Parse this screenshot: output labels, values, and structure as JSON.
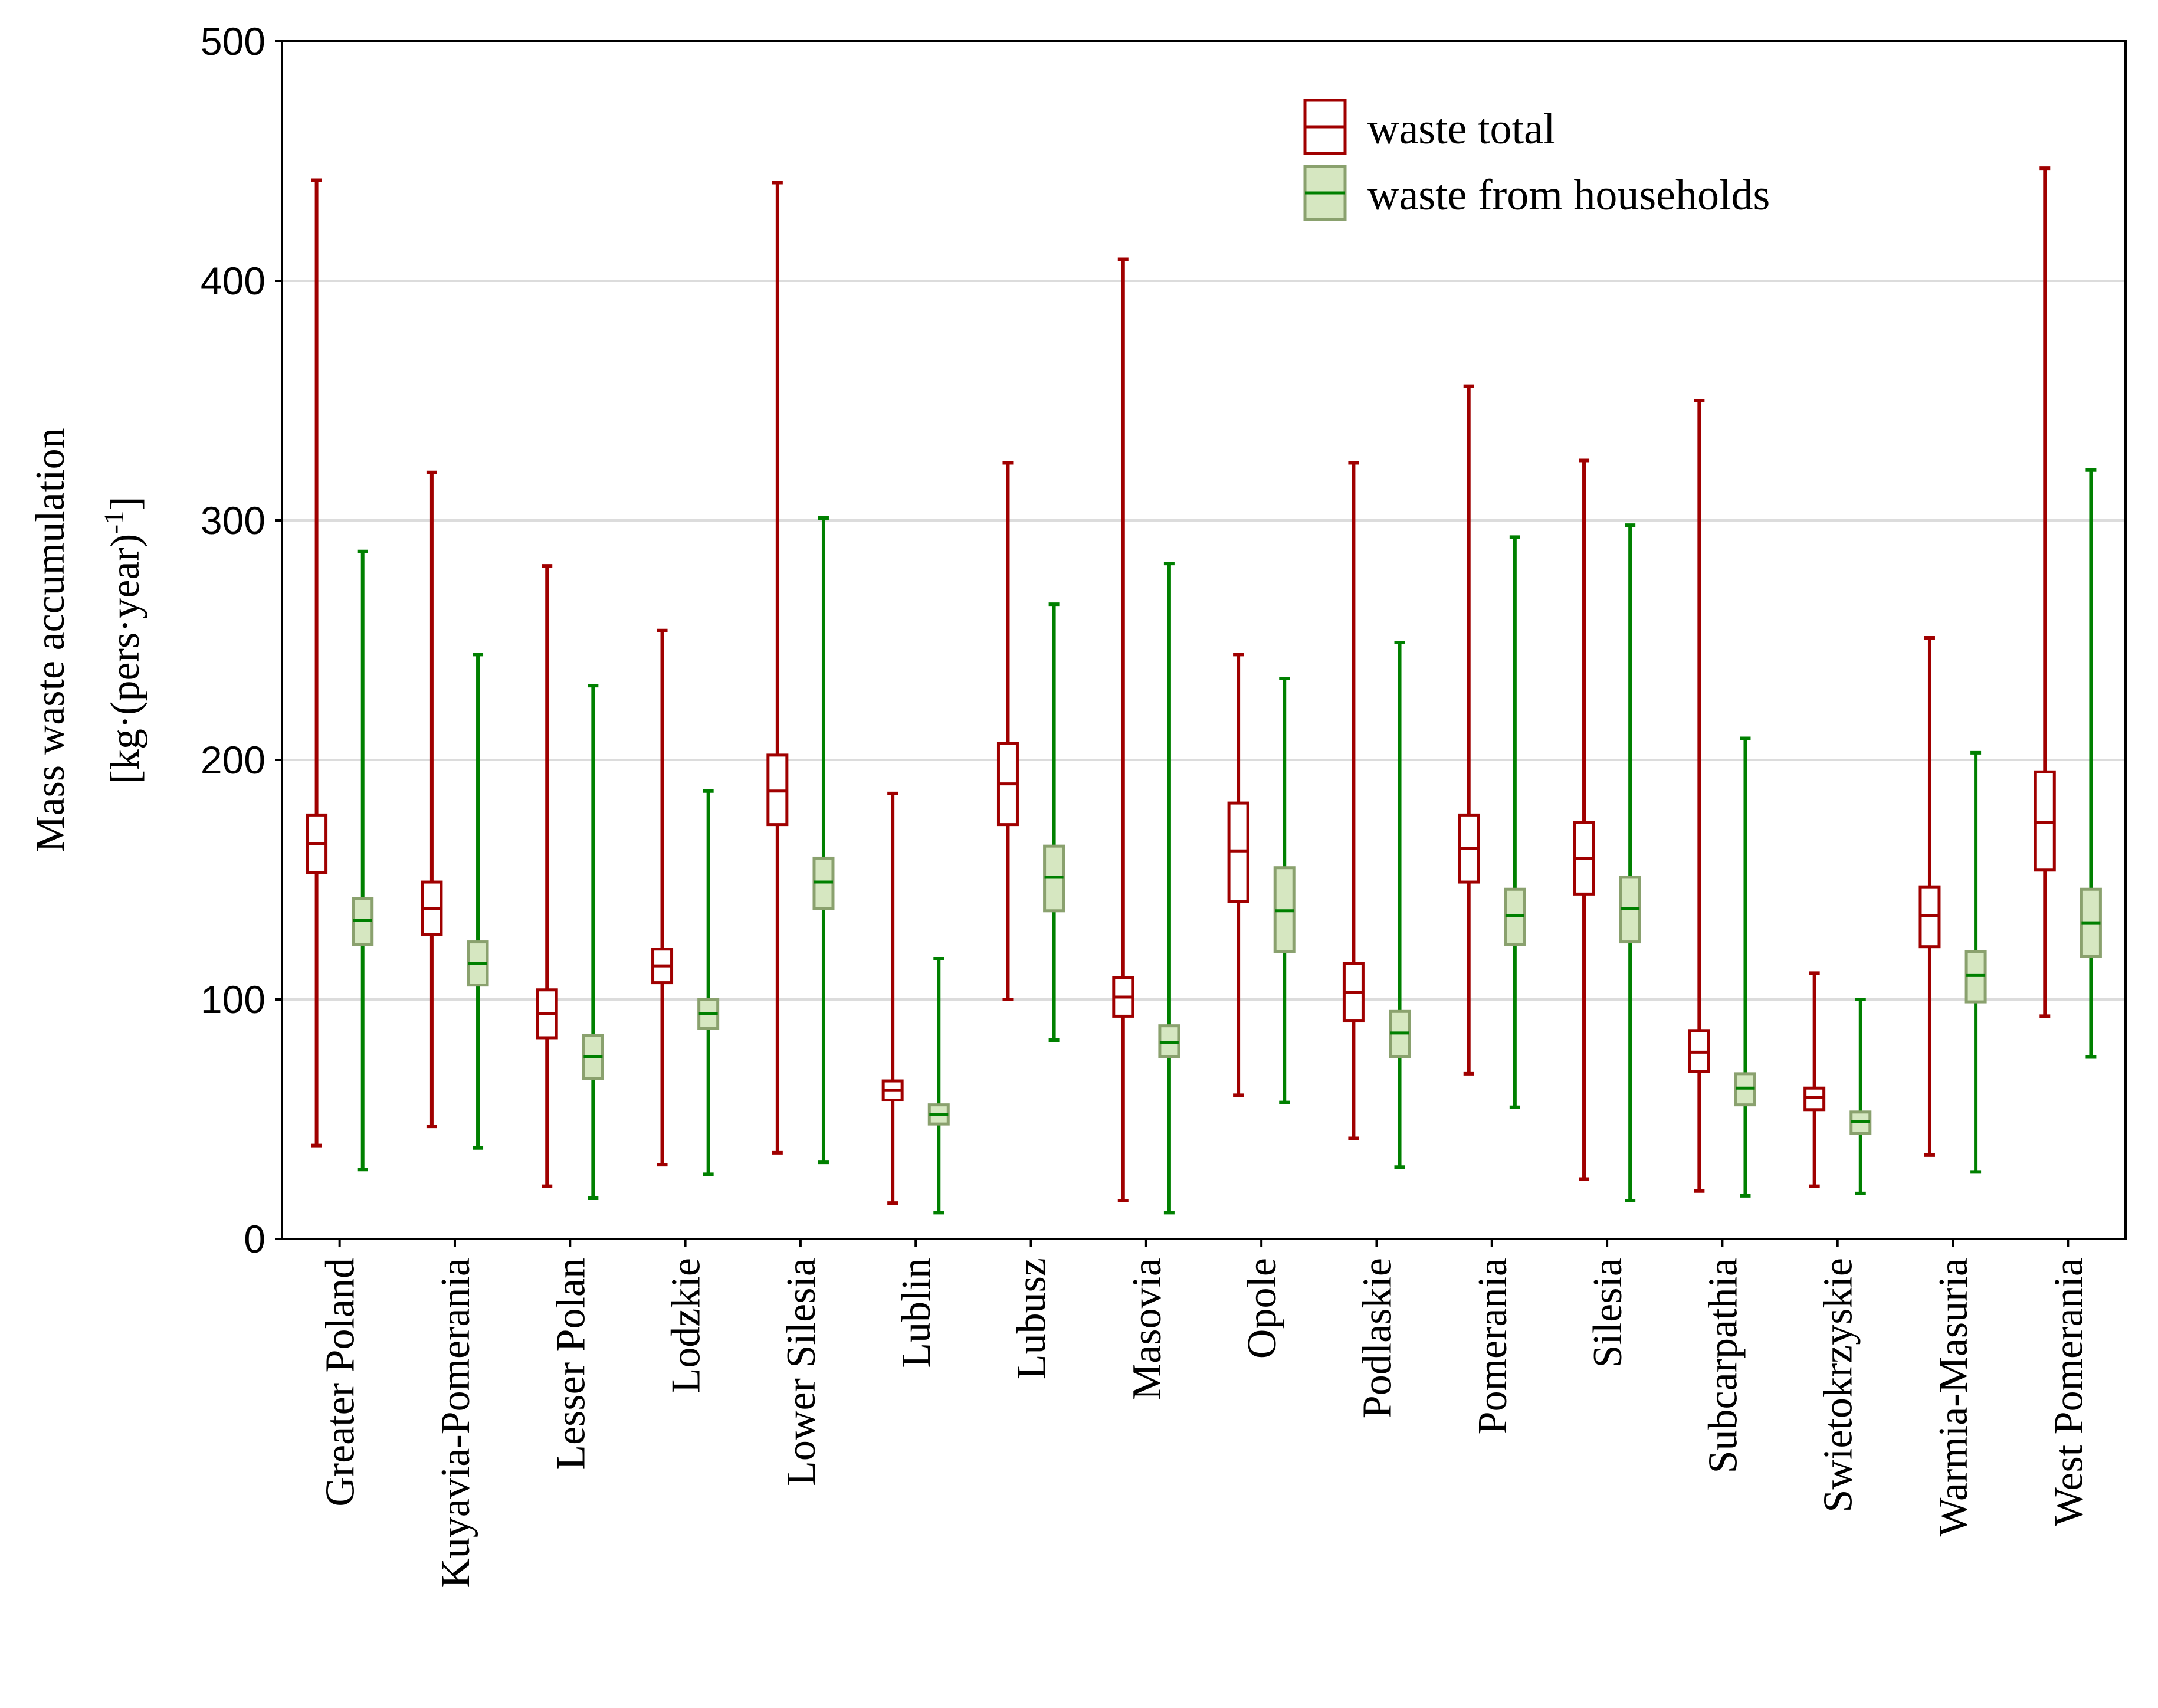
{
  "chart_data": {
    "type": "box",
    "ylabel_line1": "Mass waste accumulation",
    "ylabel_line2_prefix": "[kg·(pers·year)",
    "ylabel_line2_sup": "-1",
    "ylabel_line2_suffix": "]",
    "ylim": [
      0,
      500
    ],
    "yticks": [
      "0",
      "100",
      "200",
      "300",
      "400",
      "500"
    ],
    "grid": true,
    "legend_position": "top-right",
    "categories": [
      "Greater Poland",
      "Kuyavia-Pomerania",
      "Lesser Polan",
      "Lodzkie",
      "Lower Silesia",
      "Lublin",
      "Lubusz",
      "Masovia",
      "Opole",
      "Podlaskie",
      "Pomerania",
      "Silesia",
      "Subcarpathia",
      "Swietokrzyskie",
      "Warmia-Masuria",
      "West Pomerania"
    ],
    "series": [
      {
        "name": "waste total",
        "color": "#a00000",
        "fill": "#ffffff",
        "boxes": [
          {
            "min": 39,
            "q1": 153,
            "median": 165,
            "q3": 177,
            "max": 442
          },
          {
            "min": 47,
            "q1": 127,
            "median": 138,
            "q3": 149,
            "max": 320
          },
          {
            "min": 22,
            "q1": 84,
            "median": 94,
            "q3": 104,
            "max": 281
          },
          {
            "min": 31,
            "q1": 107,
            "median": 114,
            "q3": 121,
            "max": 254
          },
          {
            "min": 36,
            "q1": 173,
            "median": 187,
            "q3": 202,
            "max": 441
          },
          {
            "min": 15,
            "q1": 58,
            "median": 62,
            "q3": 66,
            "max": 186
          },
          {
            "min": 100,
            "q1": 173,
            "median": 190,
            "q3": 207,
            "max": 324
          },
          {
            "min": 16,
            "q1": 93,
            "median": 101,
            "q3": 109,
            "max": 409
          },
          {
            "min": 60,
            "q1": 141,
            "median": 162,
            "q3": 182,
            "max": 244
          },
          {
            "min": 42,
            "q1": 91,
            "median": 103,
            "q3": 115,
            "max": 324
          },
          {
            "min": 69,
            "q1": 149,
            "median": 163,
            "q3": 177,
            "max": 356
          },
          {
            "min": 25,
            "q1": 144,
            "median": 159,
            "q3": 174,
            "max": 325
          },
          {
            "min": 20,
            "q1": 70,
            "median": 78,
            "q3": 87,
            "max": 350
          },
          {
            "min": 22,
            "q1": 54,
            "median": 59,
            "q3": 63,
            "max": 111
          },
          {
            "min": 35,
            "q1": 122,
            "median": 135,
            "q3": 147,
            "max": 251
          },
          {
            "min": 93,
            "q1": 154,
            "median": 174,
            "q3": 195,
            "max": 447
          }
        ]
      },
      {
        "name": "waste from households",
        "color": "#008000",
        "fill": "#d6e7c1",
        "stroke": "#8aa16e",
        "boxes": [
          {
            "min": 29,
            "q1": 123,
            "median": 133,
            "q3": 142,
            "max": 287
          },
          {
            "min": 38,
            "q1": 106,
            "median": 115,
            "q3": 124,
            "max": 244
          },
          {
            "min": 17,
            "q1": 67,
            "median": 76,
            "q3": 85,
            "max": 231
          },
          {
            "min": 27,
            "q1": 88,
            "median": 94,
            "q3": 100,
            "max": 187
          },
          {
            "min": 32,
            "q1": 138,
            "median": 149,
            "q3": 159,
            "max": 301
          },
          {
            "min": 11,
            "q1": 48,
            "median": 52,
            "q3": 56,
            "max": 117
          },
          {
            "min": 83,
            "q1": 137,
            "median": 151,
            "q3": 164,
            "max": 265
          },
          {
            "min": 11,
            "q1": 76,
            "median": 82,
            "q3": 89,
            "max": 282
          },
          {
            "min": 57,
            "q1": 120,
            "median": 137,
            "q3": 155,
            "max": 234
          },
          {
            "min": 30,
            "q1": 76,
            "median": 86,
            "q3": 95,
            "max": 249
          },
          {
            "min": 55,
            "q1": 123,
            "median": 135,
            "q3": 146,
            "max": 293
          },
          {
            "min": 16,
            "q1": 124,
            "median": 138,
            "q3": 151,
            "max": 298
          },
          {
            "min": 18,
            "q1": 56,
            "median": 63,
            "q3": 69,
            "max": 209
          },
          {
            "min": 19,
            "q1": 44,
            "median": 49,
            "q3": 53,
            "max": 100
          },
          {
            "min": 28,
            "q1": 99,
            "median": 110,
            "q3": 120,
            "max": 203
          },
          {
            "min": 76,
            "q1": 118,
            "median": 132,
            "q3": 146,
            "max": 321
          }
        ]
      }
    ]
  }
}
